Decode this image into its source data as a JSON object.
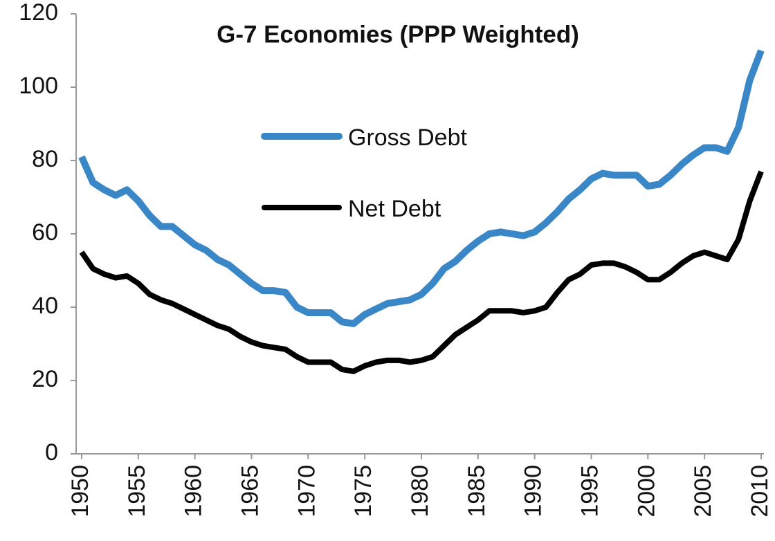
{
  "chart_data": {
    "type": "line",
    "title": "G-7 Economies  (PPP Weighted)",
    "x": [
      1950,
      1951,
      1952,
      1953,
      1954,
      1955,
      1956,
      1957,
      1958,
      1959,
      1960,
      1961,
      1962,
      1963,
      1964,
      1965,
      1966,
      1967,
      1968,
      1969,
      1970,
      1971,
      1972,
      1973,
      1974,
      1975,
      1976,
      1977,
      1978,
      1979,
      1980,
      1981,
      1982,
      1983,
      1984,
      1985,
      1986,
      1987,
      1988,
      1989,
      1990,
      1991,
      1992,
      1993,
      1994,
      1995,
      1996,
      1997,
      1998,
      1999,
      2000,
      2001,
      2002,
      2003,
      2004,
      2005,
      2006,
      2007,
      2008,
      2009,
      2010
    ],
    "series": [
      {
        "name": "Gross Debt",
        "color": "#3a87c8",
        "values": [
          81,
          74,
          72,
          70.5,
          72,
          69,
          65,
          62,
          62,
          59.5,
          57,
          55.5,
          53,
          51.5,
          49,
          46.5,
          44.5,
          44.5,
          44,
          40,
          38.5,
          38.5,
          38.5,
          36,
          35.5,
          38,
          39.5,
          41,
          41.5,
          42,
          43.5,
          46.5,
          50.5,
          52.5,
          55.5,
          58,
          60,
          60.5,
          60,
          59.5,
          60.5,
          63,
          66,
          69.5,
          72,
          75,
          76.5,
          76,
          76,
          76,
          73,
          73.5,
          76,
          79,
          81.5,
          83.5,
          83.5,
          82.5,
          89,
          102,
          110
        ]
      },
      {
        "name": "Net Debt",
        "color": "#000000",
        "values": [
          55,
          50.5,
          49,
          48,
          48.5,
          46.5,
          43.5,
          42,
          41,
          39.5,
          38,
          36.5,
          35,
          34,
          32,
          30.5,
          29.5,
          29,
          28.5,
          26.5,
          25,
          25,
          25,
          23,
          22.5,
          24,
          25,
          25.5,
          25.5,
          25,
          25.5,
          26.5,
          29.5,
          32.5,
          34.5,
          36.5,
          39,
          39,
          39,
          38.5,
          39,
          40,
          44,
          47.5,
          49,
          51.5,
          52,
          52,
          51,
          49.5,
          47.5,
          47.5,
          49.5,
          52,
          54,
          55,
          54,
          53,
          58.5,
          69,
          77
        ]
      }
    ],
    "xlim": [
      1950,
      2010
    ],
    "xticks": [
      1950,
      1955,
      1960,
      1965,
      1970,
      1975,
      1980,
      1985,
      1990,
      1995,
      2000,
      2005,
      2010
    ],
    "ylim": [
      0,
      120
    ],
    "yticks": [
      0,
      20,
      40,
      60,
      80,
      100,
      120
    ]
  }
}
